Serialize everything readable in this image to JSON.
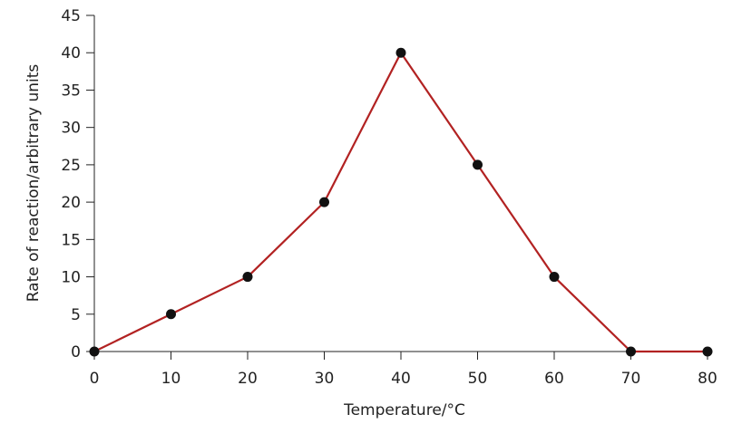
{
  "chart_data": {
    "type": "line",
    "title": "",
    "xlabel": "Temperature/°C",
    "ylabel": "Rate of reaction/arbitrary units",
    "xlim": [
      0,
      80
    ],
    "ylim": [
      0,
      45
    ],
    "xticks": [
      0,
      10,
      20,
      30,
      40,
      50,
      60,
      70,
      80
    ],
    "yticks": [
      0,
      5,
      10,
      15,
      20,
      25,
      30,
      35,
      40,
      45
    ],
    "grid": false,
    "legend": "none",
    "series": [
      {
        "color": "#b22222",
        "marker_color": "#111111",
        "points": [
          {
            "x": 0,
            "y": 0
          },
          {
            "x": 10,
            "y": 5
          },
          {
            "x": 20,
            "y": 10
          },
          {
            "x": 30,
            "y": 20
          },
          {
            "x": 40,
            "y": 40
          },
          {
            "x": 50,
            "y": 25
          },
          {
            "x": 60,
            "y": 10
          },
          {
            "x": 70,
            "y": 0
          },
          {
            "x": 80,
            "y": 0
          }
        ]
      }
    ]
  }
}
